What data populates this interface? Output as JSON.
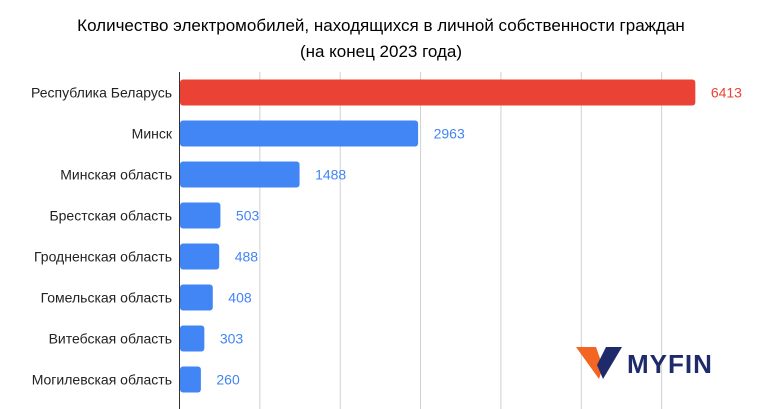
{
  "chart_data": {
    "type": "bar",
    "orientation": "horizontal",
    "title_line1": "Количество электромобилей, находящихся в личной собственности граждан",
    "title_line2": "(на конец 2023 года)",
    "categories": [
      "Республика Беларусь",
      "Минск",
      "Минская область",
      "Брестская область",
      "Гродненская область",
      "Гомельская область",
      "Витебская область",
      "Могилевская область"
    ],
    "values": [
      6413,
      2963,
      1488,
      503,
      488,
      408,
      303,
      260
    ],
    "colors": [
      "#ea4335",
      "#4285f4",
      "#4285f4",
      "#4285f4",
      "#4285f4",
      "#4285f4",
      "#4285f4",
      "#4285f4"
    ],
    "label_colors": [
      "#ea4335",
      "#4285f4",
      "#4285f4",
      "#4285f4",
      "#4285f4",
      "#4285f4",
      "#4285f4",
      "#4285f4"
    ],
    "xlim": [
      0,
      7000
    ],
    "grid": true
  },
  "logo": {
    "text": "MYFIN",
    "text_color": "#1f2a6b",
    "mark_colors": [
      "#f26522",
      "#1f2a6b"
    ]
  }
}
